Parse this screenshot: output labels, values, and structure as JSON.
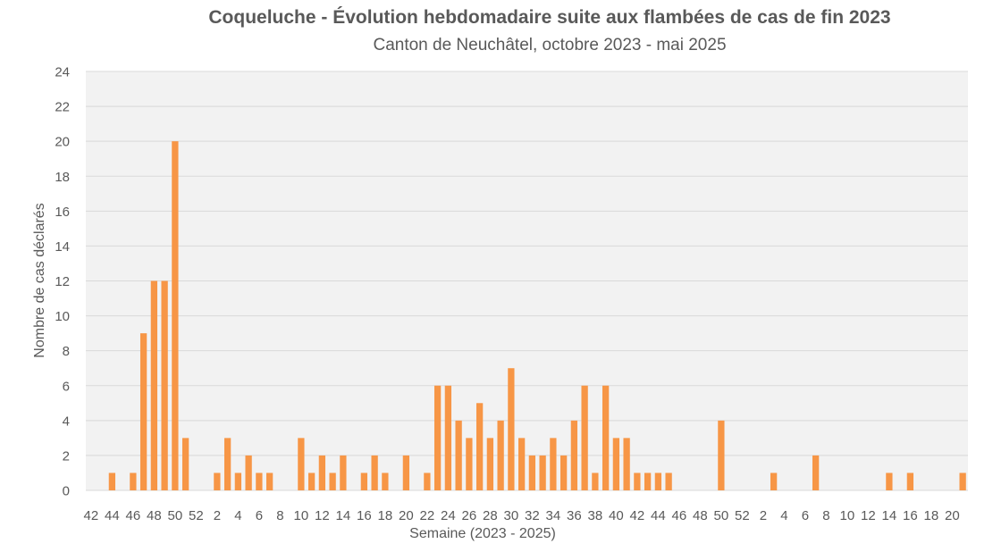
{
  "chart_data": {
    "type": "bar",
    "title": "Coqueluche - Évolution hebdomadaire suite aux flambées de cas de fin 2023",
    "subtitle": "Canton de Neuchâtel, octobre 2023 - mai 2025",
    "xlabel": "Semaine (2023 - 2025)",
    "ylabel": "Nombre de cas déclarés",
    "ylim": [
      0,
      24
    ],
    "yticks": [
      0,
      2,
      4,
      6,
      8,
      10,
      12,
      14,
      16,
      18,
      20,
      22,
      24
    ],
    "grid": true,
    "legend": "none",
    "colors": {
      "bar": "#F79646",
      "plot_bg": "#F2F2F2",
      "grid": "#D9D9D9"
    },
    "categories": [
      "42",
      "43",
      "44",
      "45",
      "46",
      "47",
      "48",
      "49",
      "50",
      "51",
      "52",
      "1",
      "2",
      "3",
      "4",
      "5",
      "6",
      "7",
      "8",
      "9",
      "10",
      "11",
      "12",
      "13",
      "14",
      "15",
      "16",
      "17",
      "18",
      "19",
      "20",
      "21",
      "22",
      "23",
      "24",
      "25",
      "26",
      "27",
      "28",
      "29",
      "30",
      "31",
      "32",
      "33",
      "34",
      "35",
      "36",
      "37",
      "38",
      "39",
      "40",
      "41",
      "42",
      "43",
      "44",
      "45",
      "46",
      "47",
      "48",
      "49",
      "50",
      "51",
      "52",
      "1",
      "2",
      "3",
      "4",
      "5",
      "6",
      "7",
      "8",
      "9",
      "10",
      "11",
      "12",
      "13",
      "14",
      "15",
      "16",
      "17",
      "18",
      "19",
      "20",
      "21"
    ],
    "values": [
      0,
      0,
      1,
      0,
      1,
      9,
      12,
      12,
      20,
      3,
      0,
      0,
      1,
      3,
      1,
      2,
      1,
      1,
      0,
      0,
      3,
      1,
      2,
      1,
      2,
      0,
      1,
      2,
      1,
      0,
      2,
      0,
      1,
      6,
      6,
      4,
      3,
      5,
      3,
      4,
      7,
      3,
      2,
      2,
      3,
      2,
      4,
      6,
      1,
      6,
      3,
      3,
      1,
      1,
      1,
      1,
      0,
      0,
      0,
      0,
      4,
      0,
      0,
      0,
      0,
      1,
      0,
      0,
      0,
      2,
      0,
      0,
      0,
      0,
      0,
      0,
      1,
      0,
      1,
      0,
      0,
      0,
      0,
      1
    ]
  }
}
